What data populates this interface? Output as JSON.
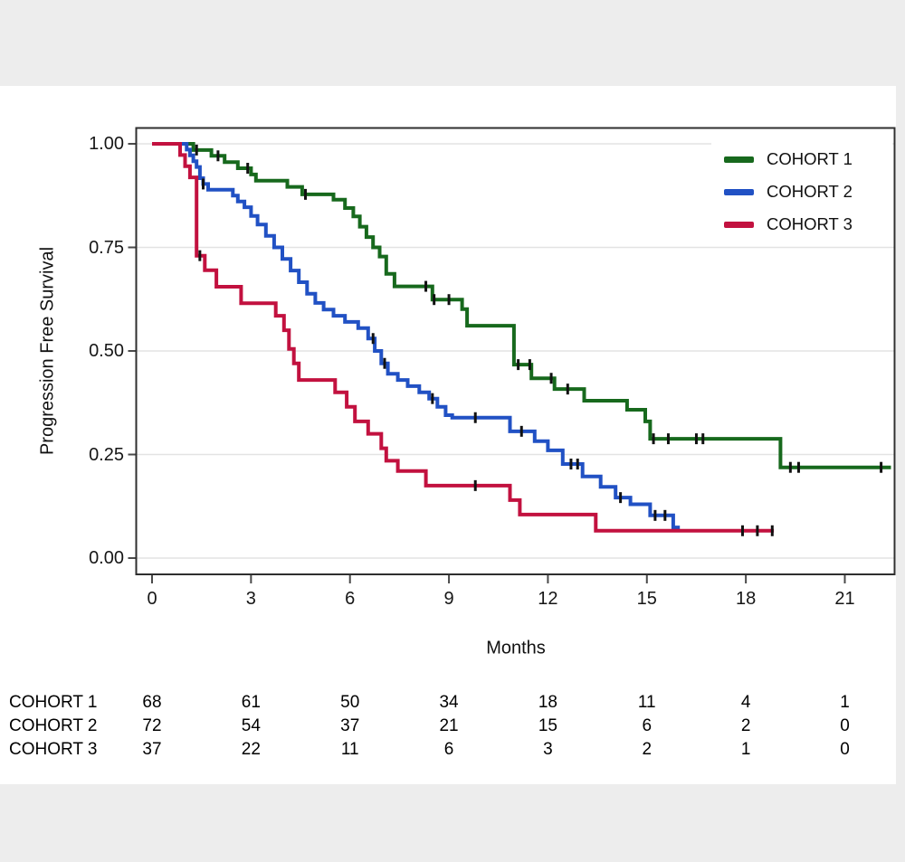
{
  "page": {
    "background": "#ededed",
    "canvas_background": "#ffffff"
  },
  "chart_data": {
    "type": "line",
    "variant": "kaplan_meier_step_survival",
    "title": "",
    "xlabel": "Months",
    "ylabel": "Progression Free Survival",
    "xlim": [
      0,
      22.5
    ],
    "ylim": [
      0,
      1.0
    ],
    "x_ticks": {
      "values": [
        0,
        3,
        6,
        9,
        12,
        15,
        18,
        21
      ],
      "labels": [
        "0",
        "3",
        "6",
        "9",
        "12",
        "15",
        "18",
        "21"
      ]
    },
    "y_ticks": {
      "values": [
        1.0,
        0.75,
        0.5,
        0.25,
        0.0
      ],
      "labels": [
        "1.00",
        "0.75",
        "0.50",
        "0.25",
        "0.00"
      ]
    },
    "grid": {
      "horizontal": true,
      "vertical": false,
      "color": "#e3e3e3"
    },
    "axis_color": "#2f2f2f",
    "tick_color": "#4a4a4a",
    "censor_color": "#111111",
    "legend": {
      "position": "top-right-inside",
      "background": "#ffffff"
    },
    "series": [
      {
        "name": "COHORT 1",
        "color": "#17691d",
        "steps": [
          [
            0,
            1.0
          ],
          [
            1.25,
            0.985
          ],
          [
            1.8,
            0.971
          ],
          [
            2.2,
            0.956
          ],
          [
            2.6,
            0.941
          ],
          [
            3.0,
            0.926
          ],
          [
            3.15,
            0.911
          ],
          [
            4.1,
            0.896
          ],
          [
            4.55,
            0.878
          ],
          [
            5.5,
            0.865
          ],
          [
            5.85,
            0.845
          ],
          [
            6.1,
            0.825
          ],
          [
            6.3,
            0.8
          ],
          [
            6.5,
            0.775
          ],
          [
            6.7,
            0.75
          ],
          [
            6.9,
            0.728
          ],
          [
            7.1,
            0.686
          ],
          [
            7.35,
            0.656
          ],
          [
            8.5,
            0.624
          ],
          [
            9.4,
            0.601
          ],
          [
            9.55,
            0.561
          ],
          [
            10.97,
            0.467
          ],
          [
            11.5,
            0.434
          ],
          [
            12.2,
            0.408
          ],
          [
            13.1,
            0.38
          ],
          [
            14.4,
            0.358
          ],
          [
            14.95,
            0.33
          ],
          [
            15.1,
            0.288
          ],
          [
            19.05,
            0.219
          ]
        ],
        "end_time": 22.4,
        "censor_times": [
          1.35,
          2.0,
          2.9,
          4.65,
          8.3,
          8.55,
          9.0,
          11.1,
          11.45,
          12.1,
          12.6,
          15.2,
          15.65,
          16.5,
          16.7,
          19.35,
          19.6,
          22.1
        ]
      },
      {
        "name": "COHORT 2",
        "color": "#2151c4",
        "steps": [
          [
            0,
            1.0
          ],
          [
            1.05,
            0.986
          ],
          [
            1.15,
            0.972
          ],
          [
            1.25,
            0.958
          ],
          [
            1.35,
            0.944
          ],
          [
            1.45,
            0.917
          ],
          [
            1.55,
            0.903
          ],
          [
            1.7,
            0.889
          ],
          [
            2.45,
            0.875
          ],
          [
            2.6,
            0.861
          ],
          [
            2.8,
            0.847
          ],
          [
            3.0,
            0.826
          ],
          [
            3.2,
            0.805
          ],
          [
            3.45,
            0.778
          ],
          [
            3.7,
            0.75
          ],
          [
            3.95,
            0.722
          ],
          [
            4.2,
            0.694
          ],
          [
            4.45,
            0.666
          ],
          [
            4.7,
            0.638
          ],
          [
            4.95,
            0.616
          ],
          [
            5.2,
            0.6
          ],
          [
            5.5,
            0.585
          ],
          [
            5.85,
            0.57
          ],
          [
            6.25,
            0.555
          ],
          [
            6.55,
            0.53
          ],
          [
            6.75,
            0.5
          ],
          [
            6.95,
            0.47
          ],
          [
            7.15,
            0.445
          ],
          [
            7.45,
            0.43
          ],
          [
            7.75,
            0.415
          ],
          [
            8.1,
            0.4
          ],
          [
            8.4,
            0.385
          ],
          [
            8.65,
            0.365
          ],
          [
            8.9,
            0.345
          ],
          [
            9.1,
            0.339
          ],
          [
            10.85,
            0.306
          ],
          [
            11.6,
            0.282
          ],
          [
            12.0,
            0.26
          ],
          [
            12.45,
            0.227
          ],
          [
            13.05,
            0.197
          ],
          [
            13.6,
            0.172
          ],
          [
            14.05,
            0.146
          ],
          [
            14.5,
            0.13
          ],
          [
            15.1,
            0.103
          ],
          [
            15.8,
            0.074
          ]
        ],
        "end_time": 16.0,
        "censor_times": [
          1.55,
          6.7,
          7.05,
          8.5,
          9.8,
          11.2,
          12.7,
          12.9,
          14.2,
          15.25,
          15.55
        ]
      },
      {
        "name": "COHORT 3",
        "color": "#c2113f",
        "steps": [
          [
            0,
            1.0
          ],
          [
            0.85,
            0.973
          ],
          [
            1.0,
            0.946
          ],
          [
            1.15,
            0.919
          ],
          [
            1.35,
            0.73
          ],
          [
            1.6,
            0.695
          ],
          [
            1.95,
            0.655
          ],
          [
            2.7,
            0.615
          ],
          [
            3.75,
            0.585
          ],
          [
            4.0,
            0.55
          ],
          [
            4.15,
            0.505
          ],
          [
            4.3,
            0.47
          ],
          [
            4.45,
            0.43
          ],
          [
            5.55,
            0.4
          ],
          [
            5.9,
            0.365
          ],
          [
            6.15,
            0.33
          ],
          [
            6.55,
            0.3
          ],
          [
            6.95,
            0.265
          ],
          [
            7.1,
            0.235
          ],
          [
            7.45,
            0.21
          ],
          [
            8.3,
            0.175
          ],
          [
            10.85,
            0.14
          ],
          [
            11.15,
            0.105
          ],
          [
            13.45,
            0.066
          ]
        ],
        "end_time": 18.85,
        "censor_times": [
          1.45,
          9.8,
          17.9,
          18.35,
          18.8
        ]
      }
    ],
    "risk_table": {
      "times": [
        0,
        3,
        6,
        9,
        12,
        15,
        18,
        21
      ],
      "rows": [
        {
          "label": "COHORT 1",
          "counts": [
            68,
            61,
            50,
            34,
            18,
            11,
            4,
            1
          ]
        },
        {
          "label": "COHORT 2",
          "counts": [
            72,
            54,
            37,
            21,
            15,
            6,
            2,
            0
          ]
        },
        {
          "label": "COHORT 3",
          "counts": [
            37,
            22,
            11,
            6,
            3,
            2,
            1,
            0
          ]
        }
      ]
    }
  }
}
